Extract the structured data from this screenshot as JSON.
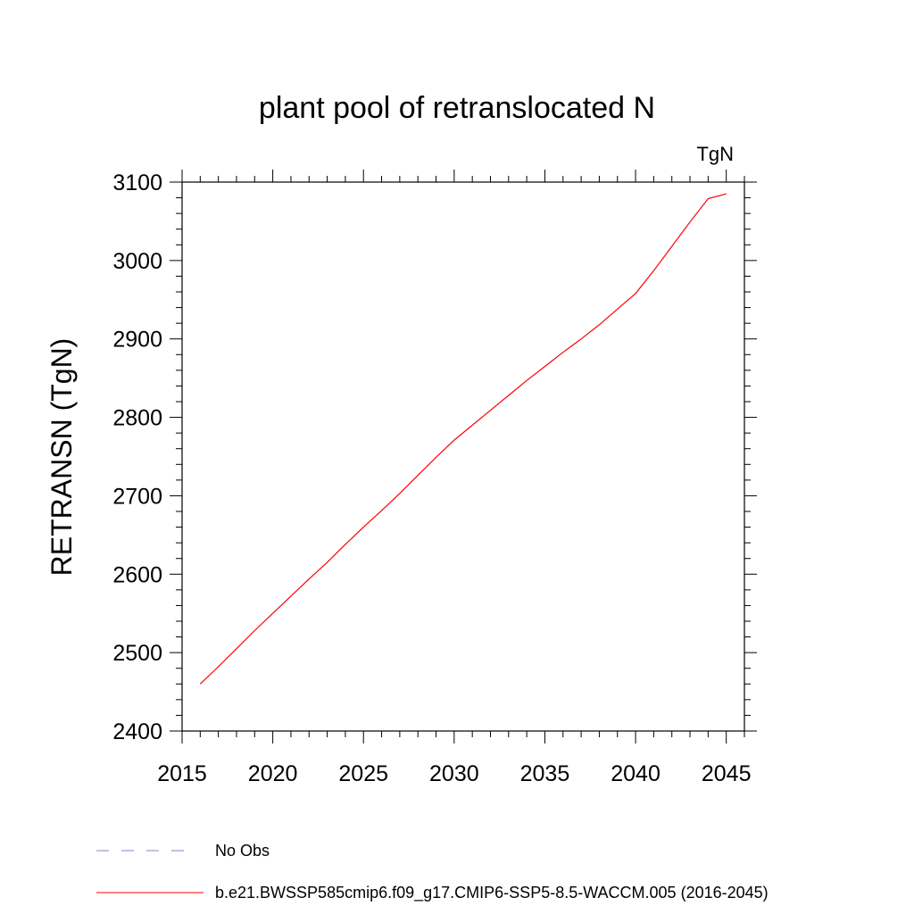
{
  "chart_data": {
    "type": "line",
    "title": "plant pool of retranslocated N",
    "units_label": "TgN",
    "ylabel": "RETRANSN  (TgN)",
    "xlabel": "",
    "xlim": [
      2015,
      2046
    ],
    "ylim": [
      2400,
      3100
    ],
    "x_ticks": [
      2015,
      2020,
      2025,
      2030,
      2035,
      2040,
      2045
    ],
    "y_ticks": [
      2400,
      2500,
      2600,
      2700,
      2800,
      2900,
      3000,
      3100
    ],
    "grid": false,
    "series": [
      {
        "name": "b.e21.BWSSP585cmip6.f09_g17.CMIP6-SSP5-8.5-WACCM.005 (2016-2045)",
        "color": "#ff0000",
        "dash": "solid",
        "x": [
          2016,
          2017,
          2018,
          2019,
          2020,
          2021,
          2022,
          2023,
          2024,
          2025,
          2026,
          2027,
          2028,
          2029,
          2030,
          2031,
          2032,
          2033,
          2034,
          2035,
          2036,
          2037,
          2038,
          2039,
          2040,
          2041,
          2042,
          2043,
          2044,
          2045
        ],
        "y": [
          2460,
          2482,
          2505,
          2528,
          2550,
          2572,
          2594,
          2615,
          2638,
          2660,
          2681,
          2703,
          2726,
          2749,
          2771,
          2790,
          2809,
          2828,
          2847,
          2865,
          2883,
          2900,
          2918,
          2938,
          2958,
          2987,
          3018,
          3049,
          3079,
          3085
        ]
      }
    ],
    "legend": {
      "placement": "bottom-left",
      "entries": [
        {
          "label": "No Obs",
          "color": "#8080c0",
          "dash": "dashed"
        },
        {
          "label": "b.e21.BWSSP585cmip6.f09_g17.CMIP6-SSP5-8.5-WACCM.005 (2016-2045)",
          "color": "#ff0000",
          "dash": "solid"
        }
      ]
    }
  }
}
